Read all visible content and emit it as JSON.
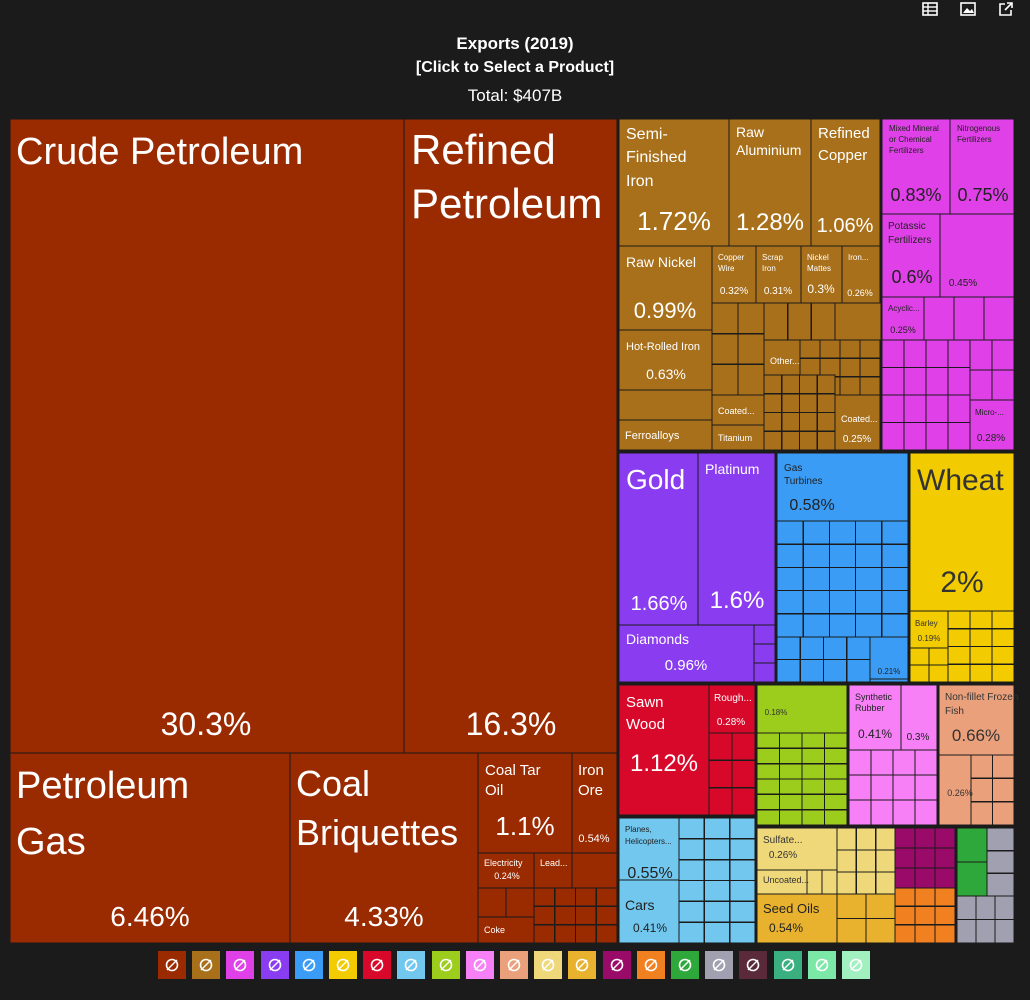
{
  "toolbar": {
    "icons": [
      "table-icon",
      "image-icon",
      "share-icon"
    ]
  },
  "header": {
    "title": "Exports (2019)",
    "subtitle": "[Click to Select a Product]",
    "total": "Total: $407B"
  },
  "colors": {
    "mineral": "#9a2a00",
    "metal": "#a8701a",
    "chemical": "#e040e8",
    "precious": "#8a3cf0",
    "machine": "#3a9cf5",
    "vegetable": "#f2cc00",
    "animal_hide": "#d8082a",
    "animal": "#eba07c",
    "foodstuff": "#e8b22e",
    "vehicle": "#72c7ef",
    "plastic": "#9a0a68",
    "stone": "#f08020",
    "textile": "#2ea83a",
    "misc": "#a0a0b0",
    "green": "#9ccc1c",
    "plasticpink": "#f780f7",
    "paper": "#efd87a"
  },
  "chart_data": {
    "type": "treemap",
    "title": "Exports (2019)",
    "total": "$407B",
    "items": [
      {
        "name": "Crude Petroleum",
        "share": "30.3%",
        "category": "mineral"
      },
      {
        "name": "Refined Petroleum",
        "share": "16.3%",
        "category": "mineral"
      },
      {
        "name": "Petroleum Gas",
        "share": "6.46%",
        "category": "mineral"
      },
      {
        "name": "Coal Briquettes",
        "share": "4.33%",
        "category": "mineral"
      },
      {
        "name": "Coal Tar Oil",
        "share": "1.1%",
        "category": "mineral"
      },
      {
        "name": "Iron Ore",
        "share": "0.54%",
        "category": "mineral"
      },
      {
        "name": "Electricity",
        "share": "0.24%",
        "category": "mineral"
      },
      {
        "name": "Lead...",
        "share": "",
        "category": "mineral"
      },
      {
        "name": "Coke",
        "share": "",
        "category": "mineral"
      },
      {
        "name": "Semi-Finished Iron",
        "share": "1.72%",
        "category": "metal"
      },
      {
        "name": "Raw Aluminium",
        "share": "1.28%",
        "category": "metal"
      },
      {
        "name": "Refined Copper",
        "share": "1.06%",
        "category": "metal"
      },
      {
        "name": "Raw Nickel",
        "share": "0.99%",
        "category": "metal"
      },
      {
        "name": "Copper Wire",
        "share": "0.32%",
        "category": "metal"
      },
      {
        "name": "Scrap Iron",
        "share": "0.31%",
        "category": "metal"
      },
      {
        "name": "Nickel Mattes",
        "share": "0.3%",
        "category": "metal"
      },
      {
        "name": "Iron...",
        "share": "0.26%",
        "category": "metal"
      },
      {
        "name": "Hot-Rolled Iron",
        "share": "0.63%",
        "category": "metal"
      },
      {
        "name": "Other...",
        "share": "",
        "category": "metal"
      },
      {
        "name": "Coated...",
        "share": "",
        "category": "metal"
      },
      {
        "name": "Coated...",
        "share": "0.25%",
        "category": "metal"
      },
      {
        "name": "Ferroalloys",
        "share": "",
        "category": "metal"
      },
      {
        "name": "Titanium",
        "share": "",
        "category": "metal"
      },
      {
        "name": "Mixed Mineral or Chemical Fertilizers",
        "share": "0.83%",
        "category": "chemical"
      },
      {
        "name": "Nitrogenous Fertilizers",
        "share": "0.75%",
        "category": "chemical"
      },
      {
        "name": "Potassic Fertilizers",
        "share": "0.6%",
        "category": "chemical"
      },
      {
        "name": "",
        "share": "0.45%",
        "category": "chemical"
      },
      {
        "name": "Acyclic...",
        "share": "0.25%",
        "category": "chemical"
      },
      {
        "name": "Micro-...",
        "share": "0.28%",
        "category": "chemical"
      },
      {
        "name": "Gold",
        "share": "1.66%",
        "category": "precious"
      },
      {
        "name": "Platinum",
        "share": "1.6%",
        "category": "precious"
      },
      {
        "name": "Diamonds",
        "share": "0.96%",
        "category": "precious"
      },
      {
        "name": "Gas Turbines",
        "share": "0.58%",
        "category": "machine"
      },
      {
        "name": "",
        "share": "0.21%",
        "category": "machine"
      },
      {
        "name": "Wheat",
        "share": "2%",
        "category": "vegetable"
      },
      {
        "name": "Barley",
        "share": "0.19%",
        "category": "vegetable"
      },
      {
        "name": "Sawn Wood",
        "share": "1.12%",
        "category": "animal_hide"
      },
      {
        "name": "Rough...",
        "share": "0.28%",
        "category": "animal_hide"
      },
      {
        "name": "",
        "share": "0.18%",
        "category": "green"
      },
      {
        "name": "Synthetic Rubber",
        "share": "0.41%",
        "category": "plasticpink"
      },
      {
        "name": "",
        "share": "0.3%",
        "category": "plasticpink"
      },
      {
        "name": "Non-fillet Frozen Fish",
        "share": "0.66%",
        "category": "animal"
      },
      {
        "name": "",
        "share": "0.26%",
        "category": "animal"
      },
      {
        "name": "Planes, Helicopters...",
        "share": "0.55%",
        "category": "vehicle"
      },
      {
        "name": "Cars",
        "share": "0.41%",
        "category": "vehicle"
      },
      {
        "name": "Sulfate...",
        "share": "0.26%",
        "category": "paper"
      },
      {
        "name": "Uncoated...",
        "share": "",
        "category": "paper"
      },
      {
        "name": "Seed Oils",
        "share": "0.54%",
        "category": "foodstuff"
      }
    ]
  },
  "legend": [
    {
      "icon": "pickaxe-icon",
      "color": "#9a2a00"
    },
    {
      "icon": "anvil-icon",
      "color": "#a8701a"
    },
    {
      "icon": "flask-icon",
      "color": "#e040e8"
    },
    {
      "icon": "diamond-icon",
      "color": "#8a3cf0"
    },
    {
      "icon": "gear-icon",
      "color": "#3a9cf5"
    },
    {
      "icon": "fruit-icon",
      "color": "#f2cc00"
    },
    {
      "icon": "ticket-icon",
      "color": "#d8082a"
    },
    {
      "icon": "road-icon",
      "color": "#72c7ef"
    },
    {
      "icon": "wheat-icon",
      "color": "#9ccc1c"
    },
    {
      "icon": "recycle-icon",
      "color": "#f780f7"
    },
    {
      "icon": "cow-icon",
      "color": "#eba07c"
    },
    {
      "icon": "scroll-icon",
      "color": "#efd87a"
    },
    {
      "icon": "jar-icon",
      "color": "#e8b22e"
    },
    {
      "icon": "gauge-icon",
      "color": "#9a0a68"
    },
    {
      "icon": "rock-icon",
      "color": "#f08020"
    },
    {
      "icon": "shirt-icon",
      "color": "#2ea83a"
    },
    {
      "icon": "box-icon",
      "color": "#a0a0b0"
    },
    {
      "icon": "easel-icon",
      "color": "#5b2a3a"
    },
    {
      "icon": "shoe-icon",
      "color": "#3ab080"
    },
    {
      "icon": "hide-icon",
      "color": "#7ce8a8"
    },
    {
      "icon": "bars-icon",
      "color": "#a0f0c0"
    }
  ]
}
